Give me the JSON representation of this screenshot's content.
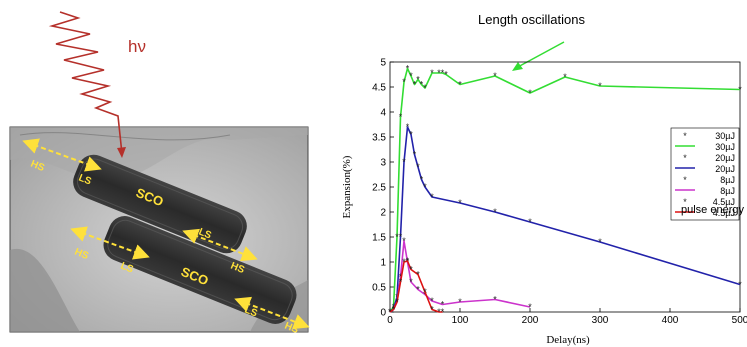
{
  "left_panel": {
    "photon_label": "hν",
    "region_labels": [
      {
        "name": "rod1-sco",
        "text": "SCO"
      },
      {
        "name": "rod2-sco",
        "text": "SCO"
      },
      {
        "name": "rod1-hs-left",
        "text": "HS"
      },
      {
        "name": "rod1-ls-left",
        "text": "LS"
      },
      {
        "name": "rod2-hs-left",
        "text": "HS"
      },
      {
        "name": "rod2-ls-left",
        "text": "LS"
      },
      {
        "name": "rod2-ls-mid",
        "text": "LS"
      },
      {
        "name": "rod2-hs-mid",
        "text": "HS"
      },
      {
        "name": "rod2-ls-right",
        "text": "LS"
      },
      {
        "name": "rod2-hs-right",
        "text": "HS"
      }
    ]
  },
  "annotation": "Length oscillations",
  "pulse_label": "pulse energy",
  "chart_data": {
    "type": "line",
    "xlabel": "Delay(ns)",
    "ylabel": "Expansion(%)",
    "xlim": [
      0,
      500
    ],
    "ylim": [
      0,
      5
    ],
    "xticks": [
      "0",
      "100",
      "200",
      "300",
      "400",
      "500"
    ],
    "yticks": [
      "0",
      "0.5",
      "1",
      "1.5",
      "2",
      "2.5",
      "3",
      "3.5",
      "4",
      "4.5",
      "5"
    ],
    "grid": false,
    "legend_position": "right",
    "legend": [
      "30µJ",
      "30µJ",
      "20µJ",
      "20µJ",
      "8µJ",
      "8µJ",
      "4.5µJ",
      "4.5µJ"
    ],
    "series": [
      {
        "name": "30µJ",
        "color": "#33dd33",
        "points": [
          [
            0,
            0
          ],
          [
            5,
            0.1
          ],
          [
            10,
            1.5
          ],
          [
            15,
            3.9
          ],
          [
            20,
            4.6
          ],
          [
            25,
            4.87
          ],
          [
            30,
            4.72
          ],
          [
            35,
            4.55
          ],
          [
            40,
            4.65
          ],
          [
            45,
            4.55
          ],
          [
            50,
            4.48
          ],
          [
            60,
            4.78
          ],
          [
            70,
            4.78
          ],
          [
            75,
            4.78
          ],
          [
            80,
            4.75
          ],
          [
            100,
            4.55
          ],
          [
            150,
            4.72
          ],
          [
            200,
            4.38
          ],
          [
            250,
            4.7
          ],
          [
            300,
            4.52
          ],
          [
            500,
            4.45
          ]
        ]
      },
      {
        "name": "20µJ",
        "color": "#2222aa",
        "points": [
          [
            0,
            0
          ],
          [
            5,
            0.05
          ],
          [
            10,
            0.3
          ],
          [
            15,
            1.5
          ],
          [
            20,
            3.0
          ],
          [
            25,
            3.7
          ],
          [
            30,
            3.55
          ],
          [
            35,
            3.15
          ],
          [
            40,
            2.9
          ],
          [
            45,
            2.65
          ],
          [
            50,
            2.5
          ],
          [
            60,
            2.3
          ],
          [
            100,
            2.18
          ],
          [
            150,
            2.0
          ],
          [
            200,
            1.8
          ],
          [
            300,
            1.4
          ],
          [
            500,
            0.55
          ]
        ]
      },
      {
        "name": "8µJ",
        "color": "#cc33cc",
        "points": [
          [
            0,
            0
          ],
          [
            5,
            0.05
          ],
          [
            10,
            0.2
          ],
          [
            15,
            0.7
          ],
          [
            20,
            1.42
          ],
          [
            25,
            1.0
          ],
          [
            30,
            0.6
          ],
          [
            40,
            0.45
          ],
          [
            50,
            0.35
          ],
          [
            60,
            0.22
          ],
          [
            75,
            0.15
          ],
          [
            100,
            0.2
          ],
          [
            150,
            0.25
          ],
          [
            200,
            0.1
          ]
        ]
      },
      {
        "name": "4.5µJ",
        "color": "#dd1111",
        "points": [
          [
            0,
            0
          ],
          [
            5,
            0.05
          ],
          [
            10,
            0.2
          ],
          [
            15,
            0.6
          ],
          [
            20,
            1.0
          ],
          [
            25,
            1.02
          ],
          [
            30,
            0.85
          ],
          [
            40,
            0.75
          ],
          [
            50,
            0.4
          ],
          [
            60,
            0.05
          ],
          [
            70,
            0
          ],
          [
            75,
            0
          ]
        ]
      }
    ]
  }
}
